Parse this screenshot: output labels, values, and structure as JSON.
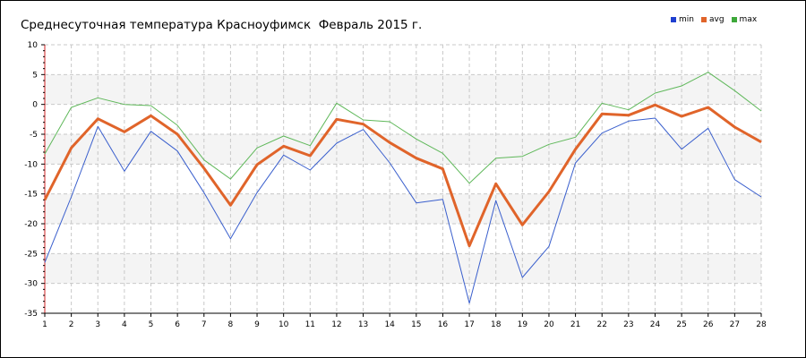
{
  "chart_data": {
    "type": "line",
    "title": "Среднесуточная температура Красноуфимск  Февраль 2015 г.",
    "x": [
      1,
      2,
      3,
      4,
      5,
      6,
      7,
      8,
      9,
      10,
      11,
      12,
      13,
      14,
      15,
      16,
      17,
      18,
      19,
      20,
      21,
      22,
      23,
      24,
      25,
      26,
      27,
      28
    ],
    "ylim": [
      -35,
      10
    ],
    "yticks": [
      10,
      5,
      0,
      -5,
      -10,
      -15,
      -20,
      -25,
      -30,
      -35
    ],
    "grid": true,
    "legend_position": "top-right",
    "series": [
      {
        "name": "min",
        "color": "#3a5fcd",
        "legend_color": "#1f3fd0",
        "values": [
          -26.5,
          -15.5,
          -3.7,
          -11.2,
          -4.5,
          -7.8,
          -14.8,
          -22.5,
          -14.8,
          -8.5,
          -11.0,
          -6.5,
          -4.2,
          -9.8,
          -16.5,
          -15.9,
          -33.3,
          -16.1,
          -29.0,
          -23.8,
          -9.8,
          -4.8,
          -2.8,
          -2.3,
          -7.5,
          -4.0,
          -12.6,
          -15.5
        ]
      },
      {
        "name": "avg",
        "color": "#e0642a",
        "legend_color": "#e0642a",
        "values": [
          -16.0,
          -7.3,
          -2.4,
          -4.6,
          -1.9,
          -5.0,
          -10.7,
          -16.9,
          -10.1,
          -7.0,
          -8.6,
          -2.5,
          -3.3,
          -6.4,
          -9.0,
          -10.8,
          -23.7,
          -13.3,
          -20.2,
          -14.6,
          -7.5,
          -1.6,
          -1.8,
          -0.1,
          -2.0,
          -0.5,
          -3.8,
          -6.3
        ]
      },
      {
        "name": "max",
        "color": "#5fb85a",
        "legend_color": "#3da83a",
        "values": [
          -8.3,
          -0.5,
          1.1,
          0.0,
          -0.2,
          -3.5,
          -9.3,
          -12.5,
          -7.3,
          -5.3,
          -6.9,
          0.2,
          -2.6,
          -2.9,
          -5.8,
          -8.2,
          -13.2,
          -9.0,
          -8.7,
          -6.7,
          -5.5,
          0.2,
          -0.9,
          1.9,
          3.1,
          5.4,
          2.3,
          -1.1
        ]
      }
    ]
  }
}
